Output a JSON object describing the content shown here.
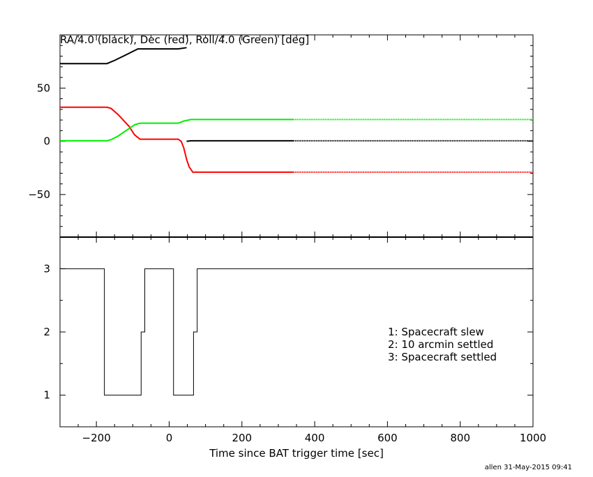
{
  "chart_data": [
    {
      "type": "line",
      "title": "RA/4.0 (black), Dec (red), Roll/4.0 (Green) [deg]",
      "xlim": [
        -300,
        1000
      ],
      "ylim": [
        -90,
        100
      ],
      "yticks": [
        -50,
        0,
        50
      ],
      "series": [
        {
          "name": "RA/4.0",
          "color": "#000000",
          "segments": [
            [
              [
                -300,
                73
              ],
              [
                -171,
                73
              ],
              [
                -150,
                76
              ],
              [
                -120,
                81
              ],
              [
                -86,
                86.8
              ],
              [
                25,
                86.8
              ],
              [
                48,
                88
              ]
            ],
            [
              [
                48,
                0
              ],
              [
                60,
                0.5
              ],
              [
                341,
                0.5
              ]
            ]
          ],
          "dotted": [
            [
              341,
              0.5
            ],
            [
              1000,
              0.5
            ]
          ]
        },
        {
          "name": "Dec",
          "color": "#ff0000",
          "segments": [
            [
              [
                -300,
                32
              ],
              [
                -171,
                32
              ],
              [
                -160,
                31
              ],
              [
                -140,
                25
              ],
              [
                -110,
                14
              ],
              [
                -95,
                6
              ],
              [
                -80,
                2
              ],
              [
                25,
                2
              ],
              [
                33,
                0
              ],
              [
                40,
                -6
              ],
              [
                48,
                -17
              ],
              [
                55,
                -24
              ],
              [
                65,
                -29
              ],
              [
                341,
                -29
              ]
            ]
          ],
          "dotted": [
            [
              341,
              -29
            ],
            [
              1000,
              -29
            ]
          ]
        },
        {
          "name": "Roll/4.0",
          "color": "#00ee00",
          "segments": [
            [
              [
                -300,
                0.5
              ],
              [
                -171,
                0.5
              ],
              [
                -160,
                1.5
              ],
              [
                -140,
                5
              ],
              [
                -110,
                12
              ],
              [
                -95,
                15.5
              ],
              [
                -80,
                17
              ],
              [
                25,
                17
              ],
              [
                40,
                19
              ],
              [
                60,
                20.5
              ],
              [
                341,
                20.5
              ]
            ]
          ],
          "dotted": [
            [
              341,
              20.5
            ],
            [
              1000,
              20.5
            ]
          ]
        }
      ]
    },
    {
      "type": "line",
      "xlabel": "Time since BAT trigger time [sec]",
      "xlim": [
        -300,
        1000
      ],
      "ylim": [
        0.5,
        3.5
      ],
      "xticks": [
        -200,
        0,
        200,
        400,
        600,
        800,
        1000
      ],
      "yticks": [
        1,
        2,
        3
      ],
      "step": [
        [
          -300,
          3
        ],
        [
          -178,
          3
        ],
        [
          -178,
          1
        ],
        [
          -77,
          1
        ],
        [
          -77,
          2
        ],
        [
          -67,
          2
        ],
        [
          -67,
          3
        ],
        [
          12,
          3
        ],
        [
          12,
          1
        ],
        [
          67,
          1
        ],
        [
          67,
          2
        ],
        [
          77,
          2
        ],
        [
          77,
          3
        ],
        [
          1000,
          3
        ]
      ],
      "legend": [
        "1: Spacecraft slew",
        "2: 10 arcmin settled",
        "3: Spacecraft settled"
      ]
    }
  ],
  "footer": "allen 31-May-2015 09:41"
}
